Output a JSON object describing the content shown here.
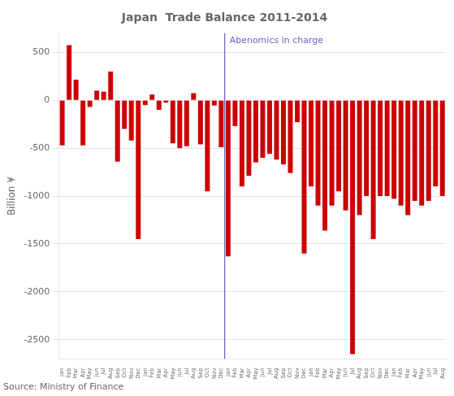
{
  "chart_data": {
    "type": "bar",
    "title": "Japan  Trade Balance 2011-2014",
    "ylabel": "Billion ¥",
    "categories": [
      "Jan",
      "Feb",
      "Mar",
      "Apr",
      "May",
      "Jun",
      "Jul",
      "Aug",
      "Sep",
      "Oct",
      "Nov",
      "Dec",
      "Jan",
      "Feb",
      "Mar",
      "Apr",
      "May",
      "Jun",
      "Jul",
      "Aug",
      "Sep",
      "Oct",
      "Nov",
      "Dec",
      "Jan",
      "Feb",
      "Mar",
      "Apr",
      "May",
      "Jun",
      "Jul",
      "Aug",
      "Sep",
      "Oct",
      "Nov",
      "Dec",
      "Jan",
      "Feb",
      "Mar",
      "Apr",
      "May",
      "Jun",
      "Jul",
      "Aug",
      "Sep",
      "Oct",
      "Nov",
      "Dec",
      "Jan",
      "Feb",
      "Mar",
      "Apr",
      "May",
      "Jun",
      "Jul",
      "Aug"
    ],
    "values": [
      -471,
      575,
      215,
      -470,
      -70,
      100,
      90,
      300,
      -640,
      -300,
      -420,
      -1450,
      -50,
      60,
      -100,
      -25,
      -450,
      -500,
      -480,
      75,
      -460,
      -950,
      -55,
      -490,
      -1630,
      -270,
      -900,
      -790,
      -650,
      -600,
      -560,
      -620,
      -670,
      -760,
      -230,
      -1600,
      -900,
      -1100,
      -1360,
      -1100,
      -950,
      -1150,
      -2650,
      -1200,
      -1000,
      -1450,
      -1000,
      -1000,
      -1030,
      -1100,
      -1200,
      -1050,
      -1100,
      -1050,
      -900,
      -1000
    ],
    "color": "#CC0000",
    "ylim": [
      -2700,
      700
    ],
    "yticks": [
      -2500,
      -2000,
      -1500,
      -1000,
      -500,
      0,
      500
    ],
    "grid": true,
    "annotations": [
      {
        "text": "Abenomics in charge",
        "index": 24,
        "color": "#6666BB"
      }
    ],
    "source": "Source: Ministry of Finance"
  }
}
